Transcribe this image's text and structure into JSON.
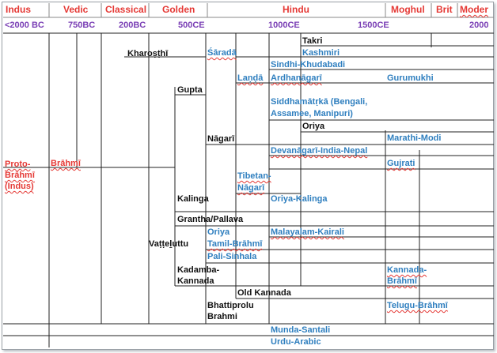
{
  "colors": {
    "era": "#e53935",
    "year": "#7a3fb5",
    "script_black": "#111111",
    "script_blue": "#2f7fbf",
    "proto": "#e53935"
  },
  "eras": [
    "Indus",
    "Vedic",
    "Classical",
    "Golden",
    "Hindu",
    "Moghul",
    "Brit",
    "Moder"
  ],
  "years": [
    "<2000 BC",
    "750BC",
    "200BC",
    "500CE",
    "1000CE",
    "1500CE",
    "2000"
  ],
  "scripts": {
    "proto_brahmi": "Proto-\nBrāhmī\n(Indus)",
    "brahmi": "Brāhmī",
    "kharosthi": "Kharoṣṭhī",
    "gupta": "Gupta",
    "sarada": "Śāradā",
    "takri": "Takri",
    "kashmiri": "Kashmiri",
    "sindhi": "Sindhi-Khudabadi",
    "landa": "Laṇḍā",
    "ardhanagari": "Ardhanāgarī",
    "gurumukhi": "Gurumukhi",
    "siddhamatrka": "Siddhamātṛkā (Bengali,\nAssamee, Manipuri)",
    "oriya_top": "Oriya",
    "nagari": "Nāgarī",
    "marathi": "Marathi-Modi",
    "devanagari": "Devanāgarī-India-Nepal",
    "gujrati": "Gujrati",
    "tibetan": "Tibetan-\nNāgarī",
    "kalinga": "Kalinga",
    "oriya_kalinga": "Oriya-Kalinga",
    "grantha": "Grantha/Pallava",
    "vatteluttu": "Vaṭṭeḻuttu",
    "oriya_mid": "Oriya",
    "malayalam": "Malayalam-Kairali",
    "tamil": "Tamil-Brāhmī",
    "pali": "Pali-Sinhala",
    "kadamba": "Kadamba-\nKannada",
    "kannada_brahmi": "Kannada-\nBrāhmī",
    "old_kannada": "Old Kannada",
    "bhattiprolu": "Bhattiprolu\nBrahmi",
    "telugu": "Telugu-Brāhmī",
    "munda": "Munda-Santali",
    "urdu": "Urdu-Arabic"
  }
}
